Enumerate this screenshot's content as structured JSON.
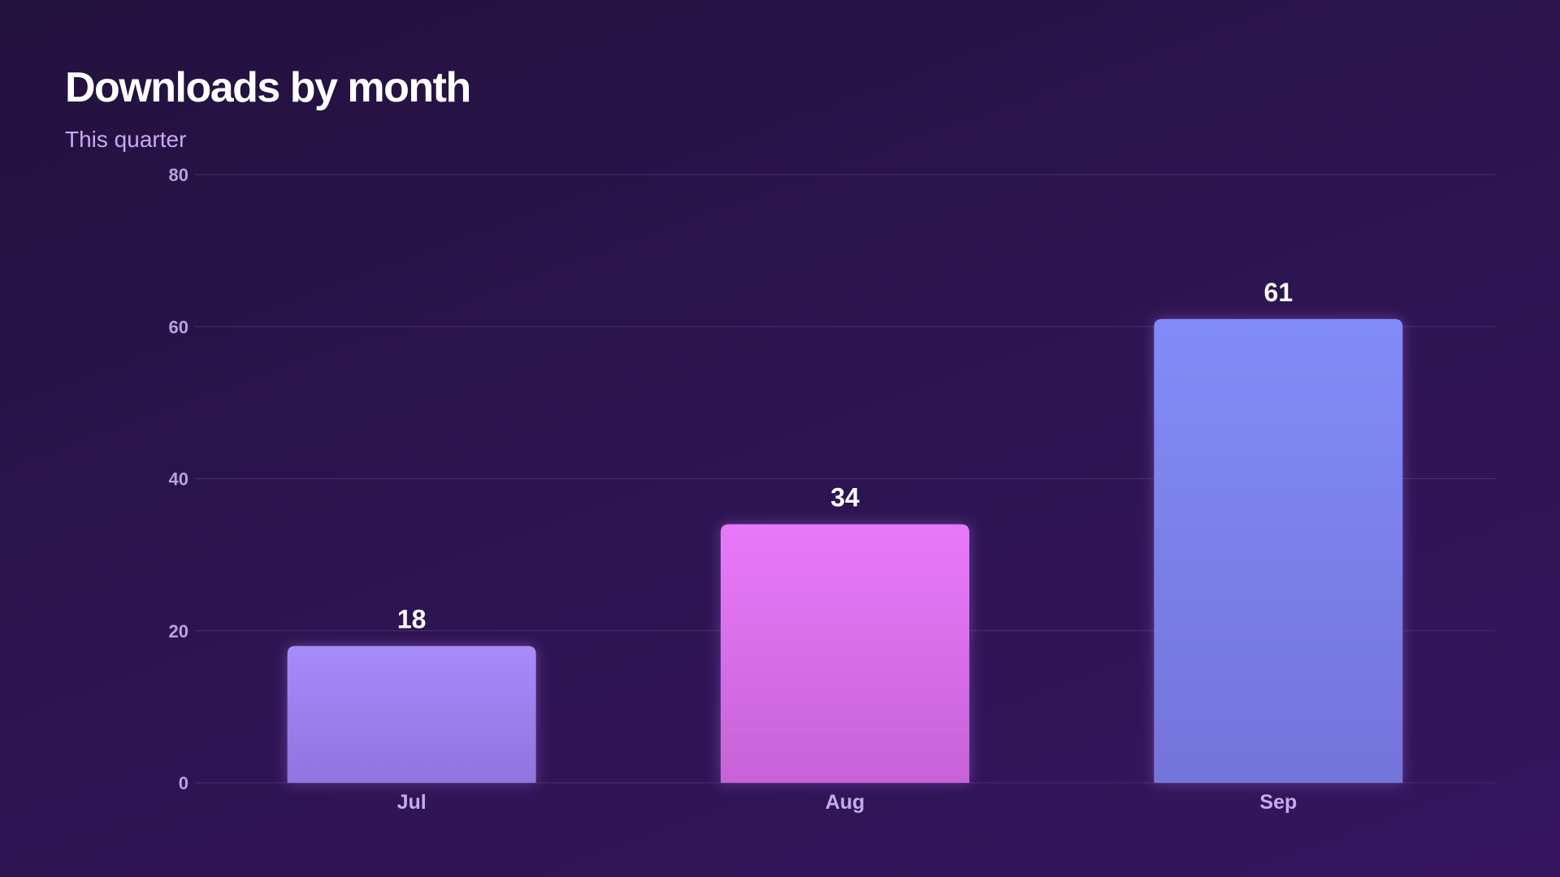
{
  "header": {
    "title": "Downloads by month",
    "subtitle": "This quarter"
  },
  "chart_data": {
    "type": "bar",
    "title": "Downloads by month",
    "subtitle": "This quarter",
    "categories": [
      "Jul",
      "Aug",
      "Sep"
    ],
    "values": [
      18,
      34,
      61
    ],
    "value_labels": [
      "18",
      "34",
      "61"
    ],
    "y_ticks": [
      "0",
      "20",
      "40",
      "60",
      "80"
    ],
    "ylim": [
      0,
      80
    ],
    "grid": true,
    "legend": "none",
    "bar_colors": [
      {
        "top": "#a78bfa",
        "bottom": "#9173dc"
      },
      {
        "top": "#e879f9",
        "bottom": "#c762d8"
      },
      {
        "top": "#818cf8",
        "bottom": "#7374da"
      }
    ],
    "background": "#2c1450",
    "gridline_color": "#4a2f73"
  }
}
